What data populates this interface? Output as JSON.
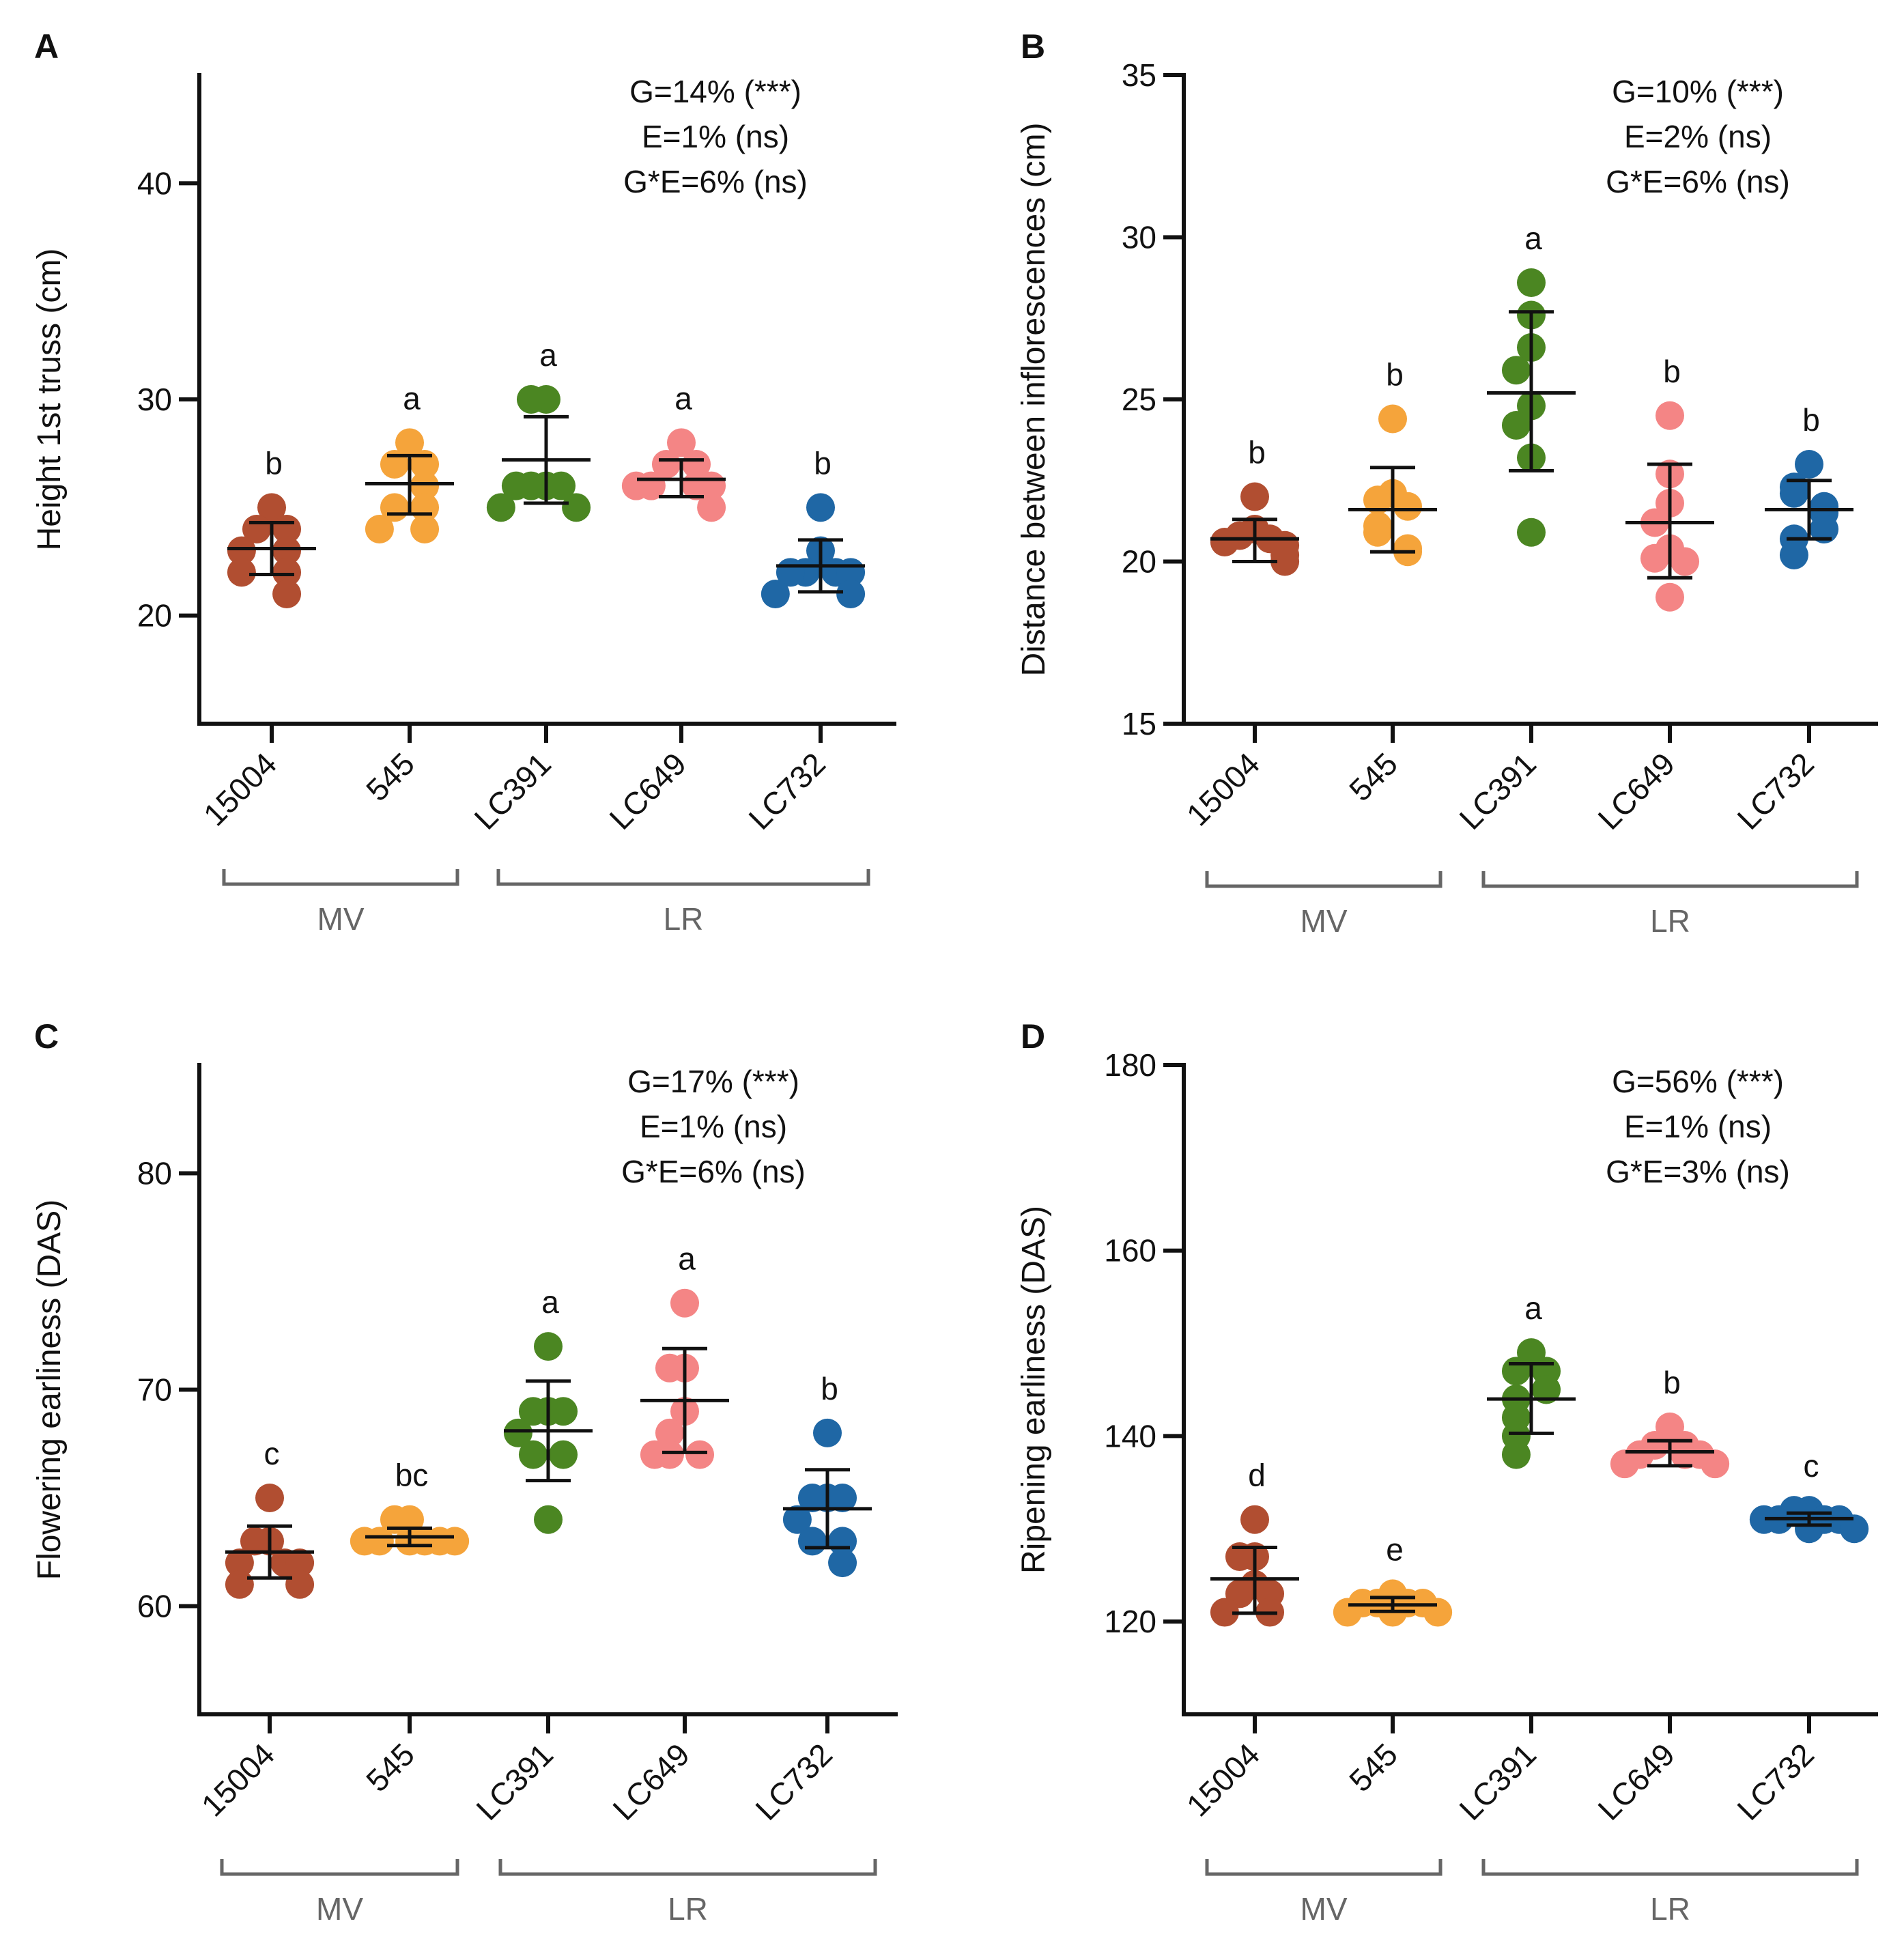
{
  "figure": {
    "panels": [
      "A",
      "B",
      "C",
      "D"
    ]
  },
  "colors": {
    "15004": "#b14e31",
    "545": "#f5a43b",
    "LC391": "#4b8622",
    "LC649": "#f48585",
    "LC732": "#1f67a5"
  },
  "chart_data": [
    {
      "panel": "A",
      "type": "scatter",
      "ylabel": "Height 1st truss  (cm)",
      "ylim": [
        15,
        45
      ],
      "yticks": [
        20,
        30,
        40
      ],
      "categories": [
        "15004",
        "545",
        "LC391",
        "LC649",
        "LC732"
      ],
      "groups": [
        {
          "label": "MV",
          "members": [
            "15004",
            "545"
          ]
        },
        {
          "label": "LR",
          "members": [
            "LC391",
            "LC649",
            "LC732"
          ]
        }
      ],
      "stats": [
        "G=14% (***)",
        "E=1% (ns)",
        "G*E=6% (ns)"
      ],
      "series": [
        {
          "name": "15004",
          "letter": "b",
          "mean": 23.1,
          "sd_low": 21.9,
          "sd_high": 24.3,
          "points": [
            25,
            24,
            24,
            23,
            23,
            22,
            22,
            21
          ]
        },
        {
          "name": "545",
          "letter": "a",
          "mean": 26.1,
          "sd_low": 24.7,
          "sd_high": 27.4,
          "points": [
            28,
            27,
            27,
            26,
            25,
            25,
            24,
            24
          ]
        },
        {
          "name": "LC391",
          "letter": "a",
          "mean": 27.2,
          "sd_low": 25.2,
          "sd_high": 29.2,
          "points": [
            30,
            30,
            26,
            26,
            26,
            26,
            25,
            25
          ]
        },
        {
          "name": "LC649",
          "letter": "a",
          "mean": 26.3,
          "sd_low": 25.5,
          "sd_high": 27.2,
          "points": [
            28,
            27,
            27,
            26,
            26,
            26,
            26,
            25
          ]
        },
        {
          "name": "LC732",
          "letter": "b",
          "mean": 22.3,
          "sd_low": 21.1,
          "sd_high": 23.5,
          "points": [
            25,
            23,
            22,
            22,
            22,
            22,
            21,
            21
          ]
        }
      ]
    },
    {
      "panel": "B",
      "type": "scatter",
      "ylabel": "Distance between inflorescences  (cm)",
      "ylim": [
        15,
        35
      ],
      "yticks": [
        15,
        20,
        25,
        30,
        35
      ],
      "categories": [
        "15004",
        "545",
        "LC391",
        "LC649",
        "LC732"
      ],
      "groups": [
        {
          "label": "MV",
          "members": [
            "15004",
            "545"
          ]
        },
        {
          "label": "LR",
          "members": [
            "LC391",
            "LC649",
            "LC732"
          ]
        }
      ],
      "stats": [
        "G=10% (***)",
        "E=2% (ns)",
        "G*E=6% (ns)"
      ],
      "series": [
        {
          "name": "15004",
          "letter": "b",
          "mean": 20.7,
          "sd_low": 20.0,
          "sd_high": 21.3,
          "points": [
            22.0,
            21.0,
            20.8,
            20.7,
            20.6,
            20.5,
            20.2,
            20.0
          ]
        },
        {
          "name": "545",
          "letter": "b",
          "mean": 21.6,
          "sd_low": 20.3,
          "sd_high": 22.9,
          "points": [
            24.4,
            22.1,
            21.9,
            21.7,
            21.1,
            20.9,
            20.4,
            20.3
          ]
        },
        {
          "name": "LC391",
          "letter": "a",
          "mean": 25.2,
          "sd_low": 22.8,
          "sd_high": 27.7,
          "points": [
            28.6,
            27.6,
            26.6,
            25.9,
            24.8,
            24.2,
            23.2,
            20.9
          ]
        },
        {
          "name": "LC649",
          "letter": "b",
          "mean": 21.2,
          "sd_low": 19.5,
          "sd_high": 23.0,
          "points": [
            24.5,
            22.7,
            21.8,
            21.2,
            20.4,
            20.1,
            20.0,
            18.9
          ]
        },
        {
          "name": "LC732",
          "letter": "b",
          "mean": 21.6,
          "sd_low": 20.7,
          "sd_high": 22.5,
          "points": [
            23.0,
            22.3,
            22.1,
            21.7,
            21.5,
            21.0,
            20.7,
            20.2
          ]
        }
      ]
    },
    {
      "panel": "C",
      "type": "scatter",
      "ylabel": "Flowering earliness  (DAS)",
      "ylim": [
        55,
        85
      ],
      "yticks": [
        60,
        70,
        80
      ],
      "categories": [
        "15004",
        "545",
        "LC391",
        "LC649",
        "LC732"
      ],
      "groups": [
        {
          "label": "MV",
          "members": [
            "15004",
            "545"
          ]
        },
        {
          "label": "LR",
          "members": [
            "LC391",
            "LC649",
            "LC732"
          ]
        }
      ],
      "stats": [
        "G=17% (***)",
        "E=1% (ns)",
        "G*E=6% (ns)"
      ],
      "series": [
        {
          "name": "15004",
          "letter": "c",
          "mean": 62.5,
          "sd_low": 61.3,
          "sd_high": 63.7,
          "points": [
            65,
            63,
            63,
            62,
            62,
            62,
            61,
            61
          ]
        },
        {
          "name": "545",
          "letter": "bc",
          "mean": 63.2,
          "sd_low": 62.8,
          "sd_high": 63.6,
          "points": [
            64,
            64,
            63,
            63,
            63,
            63,
            63,
            63
          ]
        },
        {
          "name": "LC391",
          "letter": "a",
          "mean": 68.1,
          "sd_low": 65.8,
          "sd_high": 70.4,
          "points": [
            72,
            69,
            69,
            69,
            68,
            67,
            67,
            64
          ]
        },
        {
          "name": "LC649",
          "letter": "a",
          "mean": 69.5,
          "sd_low": 67.1,
          "sd_high": 71.9,
          "points": [
            74,
            71,
            71,
            69,
            68,
            67,
            67,
            67
          ]
        },
        {
          "name": "LC732",
          "letter": "b",
          "mean": 64.5,
          "sd_low": 62.7,
          "sd_high": 66.3,
          "points": [
            68,
            65,
            65,
            65,
            64,
            63,
            63,
            62
          ]
        }
      ]
    },
    {
      "panel": "D",
      "type": "scatter",
      "ylabel": "Ripening earliness (DAS)",
      "ylim": [
        110,
        180
      ],
      "yticks": [
        120,
        140,
        160,
        180
      ],
      "categories": [
        "15004",
        "545",
        "LC391",
        "LC649",
        "LC732"
      ],
      "groups": [
        {
          "label": "MV",
          "members": [
            "15004",
            "545"
          ]
        },
        {
          "label": "LR",
          "members": [
            "LC391",
            "LC649",
            "LC732"
          ]
        }
      ],
      "stats": [
        "G=56% (***)",
        "E=1% (ns)",
        "G*E=3% (ns)"
      ],
      "series": [
        {
          "name": "15004",
          "letter": "d",
          "mean": 124.6,
          "sd_low": 120.9,
          "sd_high": 128.0,
          "points": [
            131,
            127,
            127,
            124,
            123,
            123,
            121,
            121
          ]
        },
        {
          "name": "545",
          "letter": "e",
          "mean": 121.8,
          "sd_low": 121.1,
          "sd_high": 122.6,
          "points": [
            123,
            122,
            122,
            122,
            122,
            121,
            121,
            121
          ]
        },
        {
          "name": "LC391",
          "letter": "a",
          "mean": 144.0,
          "sd_low": 140.3,
          "sd_high": 147.8,
          "points": [
            149,
            147,
            147,
            145,
            144,
            142,
            140,
            138
          ]
        },
        {
          "name": "LC649",
          "letter": "b",
          "mean": 138.3,
          "sd_low": 136.8,
          "sd_high": 139.5,
          "points": [
            141,
            139,
            139,
            138,
            138,
            138,
            137,
            137
          ]
        },
        {
          "name": "LC732",
          "letter": "c",
          "mean": 131.1,
          "sd_low": 130.4,
          "sd_high": 131.7,
          "points": [
            132,
            132,
            131,
            131,
            131,
            131,
            130,
            130
          ]
        }
      ]
    }
  ]
}
